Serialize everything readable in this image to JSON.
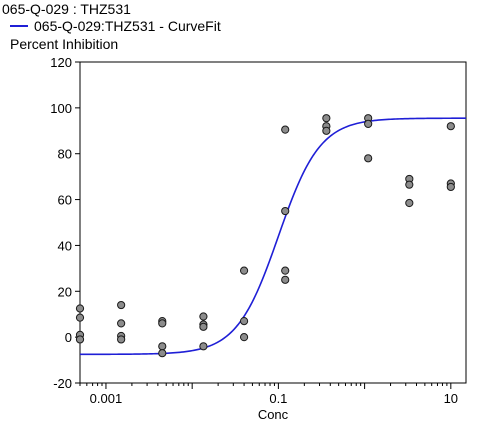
{
  "header": {
    "title": "065-Q-029  :  THZ531",
    "legend_label": "065-Q-029:THZ531 - CurveFit",
    "y_label": "Percent Inhibition"
  },
  "colors": {
    "curve": "#1f1fd6",
    "points_fill": "#8c8c8c",
    "points_stroke": "#1a1a1a"
  },
  "chart_data": {
    "type": "scatter",
    "title": "065-Q-029  :  THZ531",
    "xlabel": "Conc",
    "ylabel": "Percent Inhibition",
    "x_scale": "log",
    "xlim": [
      0.0005,
      15
    ],
    "ylim": [
      -20,
      120
    ],
    "x_ticks": [
      0.001,
      0.1,
      10
    ],
    "x_tick_labels": [
      "0.001",
      "0.1",
      "10"
    ],
    "y_ticks": [
      -20,
      0,
      20,
      40,
      60,
      80,
      100,
      120
    ],
    "y_tick_labels": [
      "-20",
      "0",
      "20",
      "40",
      "60",
      "80",
      "100",
      "120"
    ],
    "grid": false,
    "legend": "top-left",
    "series": [
      {
        "name": "065-Q-029:THZ531 - CurveFit",
        "kind": "line",
        "model": "4PL",
        "bottom": -7.5,
        "top": 95.5,
        "ic50": 0.1,
        "hill": 1.8
      },
      {
        "kind": "scatter",
        "points": [
          [
            0.0005,
            12.5
          ],
          [
            0.0005,
            8.5
          ],
          [
            0.0005,
            1.0
          ],
          [
            0.0005,
            -1.0
          ],
          [
            0.0015,
            14.0
          ],
          [
            0.0015,
            6.0
          ],
          [
            0.0015,
            0.5
          ],
          [
            0.0015,
            -1.0
          ],
          [
            0.0045,
            7.0
          ],
          [
            0.0045,
            6.0
          ],
          [
            0.0045,
            -4.0
          ],
          [
            0.0045,
            -7.0
          ],
          [
            0.0135,
            9.0
          ],
          [
            0.0135,
            5.5
          ],
          [
            0.0135,
            4.5
          ],
          [
            0.0135,
            -4.0
          ],
          [
            0.04,
            29.0
          ],
          [
            0.04,
            7.0
          ],
          [
            0.04,
            0.0
          ],
          [
            0.12,
            90.5
          ],
          [
            0.12,
            55.0
          ],
          [
            0.12,
            29.0
          ],
          [
            0.12,
            25.0
          ],
          [
            0.36,
            95.5
          ],
          [
            0.36,
            92.0
          ],
          [
            0.36,
            90.0
          ],
          [
            1.1,
            95.5
          ],
          [
            1.1,
            93.0
          ],
          [
            1.1,
            78.0
          ],
          [
            3.3,
            69.0
          ],
          [
            3.3,
            66.5
          ],
          [
            3.3,
            58.5
          ],
          [
            10.0,
            92.0
          ],
          [
            10.0,
            67.0
          ],
          [
            10.0,
            65.5
          ]
        ]
      }
    ]
  }
}
